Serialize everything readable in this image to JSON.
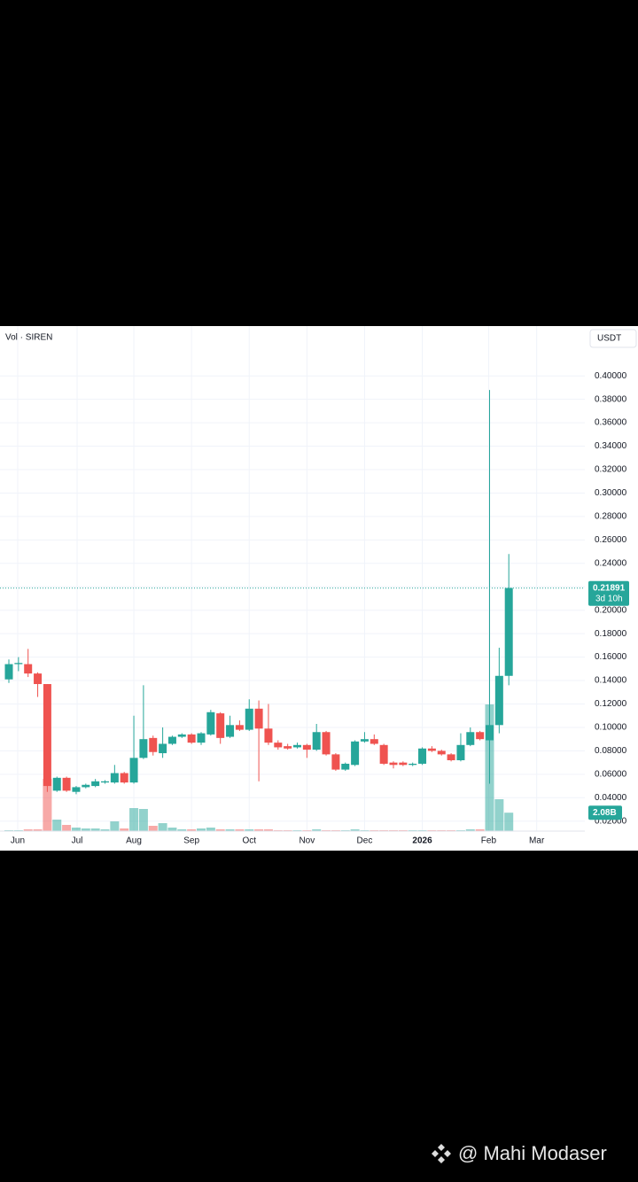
{
  "chart_data": {
    "type": "candlestick",
    "legend_label": "Vol · SIREN",
    "currency": "USDT",
    "x_labels": [
      {
        "value": 0.92,
        "label": "Jun"
      },
      {
        "value": 7.1,
        "label": "Jul"
      },
      {
        "value": 13,
        "label": "Aug"
      },
      {
        "value": 19,
        "label": "Sep"
      },
      {
        "value": 25,
        "label": "Oct"
      },
      {
        "value": 31,
        "label": "Nov"
      },
      {
        "value": 37,
        "label": "Dec"
      },
      {
        "value": 43,
        "label": "2026"
      },
      {
        "value": 49.9,
        "label": "Feb"
      },
      {
        "value": 54.9,
        "label": "Mar"
      }
    ],
    "ylim": [
      0.0115,
      0.4425
    ],
    "yticks": [
      {
        "value": 0.4,
        "label": "0.40000"
      },
      {
        "value": 0.38,
        "label": "0.38000"
      },
      {
        "value": 0.36,
        "label": "0.36000"
      },
      {
        "value": 0.34,
        "label": "0.34000"
      },
      {
        "value": 0.32,
        "label": "0.32000"
      },
      {
        "value": 0.3,
        "label": "0.30000"
      },
      {
        "value": 0.28,
        "label": "0.28000"
      },
      {
        "value": 0.26,
        "label": "0.26000"
      },
      {
        "value": 0.24,
        "label": "0.24000"
      },
      {
        "value": 0.22,
        "label": "0.22000"
      },
      {
        "value": 0.2,
        "label": "0.20000"
      },
      {
        "value": 0.18,
        "label": "0.18000"
      },
      {
        "value": 0.16,
        "label": "0.16000"
      },
      {
        "value": 0.14,
        "label": "0.14000"
      },
      {
        "value": 0.12,
        "label": "0.12000"
      },
      {
        "value": 0.1,
        "label": "0.10000"
      },
      {
        "value": 0.08,
        "label": "0.08000"
      },
      {
        "value": 0.06,
        "label": "0.06000"
      },
      {
        "value": 0.04,
        "label": "0.04000"
      },
      {
        "value": 0.02,
        "label": "0.02000"
      }
    ],
    "grid": true,
    "up_color": "#26a69a",
    "down_color": "#ef5350",
    "open": [
      0.141,
      0.154,
      0.154,
      0.146,
      0.137,
      0.046,
      0.057,
      0.045,
      0.049,
      0.05,
      0.053,
      0.053,
      0.061,
      0.053,
      0.074,
      0.091,
      0.078,
      0.086,
      0.092,
      0.094,
      0.087,
      0.094,
      0.112,
      0.092,
      0.102,
      0.098,
      0.116,
      0.099,
      0.087,
      0.084,
      0.083,
      0.085,
      0.081,
      0.096,
      0.077,
      0.064,
      0.068,
      0.088,
      0.09,
      0.085,
      0.07,
      0.07,
      0.068,
      0.069,
      0.082,
      0.08,
      0.077,
      0.072,
      0.085,
      0.096,
      0.089,
      0.102,
      0.144
    ],
    "high": [
      0.158,
      0.16,
      0.167,
      0.147,
      0.137,
      0.058,
      0.058,
      0.05,
      0.052,
      0.056,
      0.055,
      0.068,
      0.062,
      0.11,
      0.136,
      0.093,
      0.1,
      0.093,
      0.095,
      0.095,
      0.096,
      0.115,
      0.113,
      0.11,
      0.106,
      0.124,
      0.123,
      0.12,
      0.089,
      0.086,
      0.087,
      0.086,
      0.103,
      0.097,
      0.078,
      0.07,
      0.089,
      0.096,
      0.094,
      0.086,
      0.071,
      0.071,
      0.07,
      0.083,
      0.084,
      0.081,
      0.078,
      0.095,
      0.1,
      0.097,
      0.388,
      0.168,
      0.248
    ],
    "low": [
      0.138,
      0.148,
      0.143,
      0.126,
      0.045,
      0.045,
      0.045,
      0.043,
      0.048,
      0.049,
      0.052,
      0.052,
      0.052,
      0.052,
      0.073,
      0.076,
      0.074,
      0.085,
      0.091,
      0.086,
      0.085,
      0.093,
      0.086,
      0.091,
      0.097,
      0.097,
      0.054,
      0.085,
      0.081,
      0.081,
      0.082,
      0.074,
      0.08,
      0.076,
      0.063,
      0.063,
      0.067,
      0.087,
      0.085,
      0.068,
      0.065,
      0.067,
      0.067,
      0.068,
      0.079,
      0.076,
      0.071,
      0.071,
      0.084,
      0.089,
      0.052,
      0.095,
      0.136
    ],
    "close": [
      0.154,
      0.155,
      0.146,
      0.137,
      0.05,
      0.057,
      0.046,
      0.049,
      0.051,
      0.054,
      0.054,
      0.061,
      0.053,
      0.074,
      0.09,
      0.079,
      0.086,
      0.092,
      0.094,
      0.087,
      0.095,
      0.113,
      0.091,
      0.102,
      0.098,
      0.116,
      0.099,
      0.087,
      0.083,
      0.082,
      0.085,
      0.081,
      0.096,
      0.077,
      0.064,
      0.069,
      0.088,
      0.09,
      0.086,
      0.069,
      0.068,
      0.068,
      0.069,
      0.082,
      0.08,
      0.077,
      0.072,
      0.085,
      0.096,
      0.09,
      0.102,
      0.144,
      0.219
    ],
    "volume": [
      0.1,
      0.1,
      0.2,
      0.2,
      5.9,
      1.3,
      0.7,
      0.4,
      0.3,
      0.3,
      0.2,
      1.1,
      0.3,
      2.6,
      2.5,
      0.6,
      0.9,
      0.4,
      0.2,
      0.2,
      0.3,
      0.4,
      0.2,
      0.2,
      0.2,
      0.2,
      0.2,
      0.2,
      0.1,
      0.1,
      0.1,
      0.1,
      0.2,
      0.1,
      0.1,
      0.1,
      0.2,
      0.1,
      0.1,
      0.1,
      0.1,
      0.1,
      0.1,
      0.1,
      0.1,
      0.1,
      0.1,
      0.1,
      0.2,
      0.2,
      14.3,
      3.6,
      2.08
    ],
    "volume_ylim": [
      0,
      40
    ],
    "volume_value_label": "2.08B",
    "last_price": 0.21891,
    "countdown": "3d 10h",
    "watermark": "@ Mahi Modaser"
  }
}
